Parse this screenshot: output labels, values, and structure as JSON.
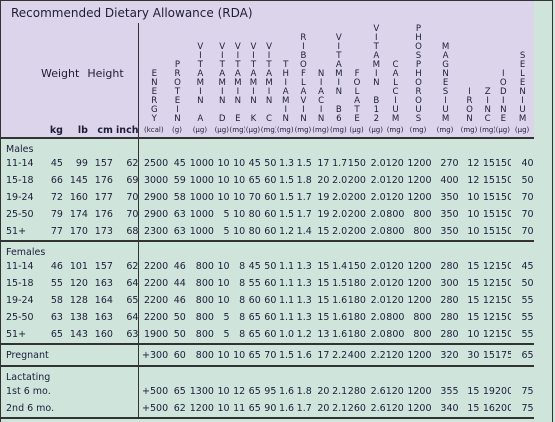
{
  "header": {
    "title": "Recommended Dietary Allowance (RDA)",
    "weight": "Weight",
    "height": "Height",
    "subcolumns": [
      "kg",
      "lb",
      "cm",
      "inch"
    ]
  },
  "columns": [
    {
      "name": "ENERGY",
      "unit": "(kcal)"
    },
    {
      "name": "PROTEIN",
      "unit": "(g)"
    },
    {
      "name": "VITAMIN A",
      "unit": "(µg)"
    },
    {
      "name": "VITAMIN D",
      "unit": "(µg)"
    },
    {
      "name": "VITAMIN E",
      "unit": "(mg)"
    },
    {
      "name": "VITAMIN K",
      "unit": "(µg)"
    },
    {
      "name": "VITAMIN C",
      "unit": "(mg)"
    },
    {
      "name": "THIAMIN",
      "unit": "(mg)"
    },
    {
      "name": "RIBOFLAVIN",
      "unit": "(mg)"
    },
    {
      "name": "NIACIN",
      "unit": "(mg)"
    },
    {
      "name": "VITAMIN B6",
      "unit": "(mg)"
    },
    {
      "name": "FOLATE",
      "unit": "(µg)"
    },
    {
      "name": "VITAMIN B12",
      "unit": "(µg)"
    },
    {
      "name": "CALCIUM",
      "unit": "(mg)"
    },
    {
      "name": "PHOSPHOROUS",
      "unit": "(mg)"
    },
    {
      "name": "MAGNESIUM",
      "unit": "(mg)"
    },
    {
      "name": "IRON",
      "unit": "(mg)"
    },
    {
      "name": "ZINC",
      "unit": "(mg)"
    },
    {
      "name": "IODINE",
      "unit": "(µg)"
    },
    {
      "name": "SELENIUM",
      "unit": "(µg)"
    }
  ],
  "groups": [
    {
      "label": "Males",
      "rows": [
        {
          "label": "11-14",
          "measures": [
            "45",
            "99",
            "157",
            "62"
          ],
          "values": [
            "2500",
            "45",
            "1000",
            "10",
            "10",
            "45",
            "50",
            "1.3",
            "1.5",
            "17",
            "1.7",
            "150",
            "2.0",
            "1200",
            "1200",
            "270",
            "12",
            "15",
            "150",
            "40"
          ]
        },
        {
          "label": "15-18",
          "measures": [
            "66",
            "145",
            "176",
            "69"
          ],
          "values": [
            "3000",
            "59",
            "1000",
            "10",
            "10",
            "65",
            "60",
            "1.5",
            "1.8",
            "20",
            "2.0",
            "200",
            "2.0",
            "1200",
            "1200",
            "400",
            "12",
            "15",
            "150",
            "50"
          ]
        },
        {
          "label": "19-24",
          "measures": [
            "72",
            "160",
            "177",
            "70"
          ],
          "values": [
            "2900",
            "58",
            "1000",
            "10",
            "10",
            "70",
            "60",
            "1.5",
            "1.7",
            "19",
            "2.0",
            "200",
            "2.0",
            "1200",
            "1200",
            "350",
            "10",
            "15",
            "150",
            "70"
          ]
        },
        {
          "label": "25-50",
          "measures": [
            "79",
            "174",
            "176",
            "70"
          ],
          "values": [
            "2900",
            "63",
            "1000",
            "5",
            "10",
            "80",
            "60",
            "1.5",
            "1.7",
            "19",
            "2.0",
            "200",
            "2.0",
            "800",
            "800",
            "350",
            "10",
            "15",
            "150",
            "70"
          ]
        },
        {
          "label": "51+",
          "measures": [
            "77",
            "170",
            "173",
            "68"
          ],
          "values": [
            "2300",
            "63",
            "1000",
            "5",
            "10",
            "80",
            "60",
            "1.2",
            "1.4",
            "15",
            "2.0",
            "200",
            "2.0",
            "800",
            "800",
            "350",
            "10",
            "15",
            "150",
            "70"
          ]
        }
      ]
    },
    {
      "label": "Females",
      "rows": [
        {
          "label": "11-14",
          "measures": [
            "46",
            "101",
            "157",
            "62"
          ],
          "values": [
            "2200",
            "46",
            "800",
            "10",
            "8",
            "45",
            "50",
            "1.1",
            "1.3",
            "15",
            "1.4",
            "150",
            "2.0",
            "1200",
            "1200",
            "280",
            "15",
            "12",
            "150",
            "45"
          ]
        },
        {
          "label": "15-18",
          "measures": [
            "55",
            "120",
            "163",
            "64"
          ],
          "values": [
            "2200",
            "44",
            "800",
            "10",
            "8",
            "55",
            "60",
            "1.1",
            "1.3",
            "15",
            "1.5",
            "180",
            "2.0",
            "1200",
            "1200",
            "300",
            "15",
            "12",
            "150",
            "50"
          ]
        },
        {
          "label": "19-24",
          "measures": [
            "58",
            "128",
            "164",
            "65"
          ],
          "values": [
            "2200",
            "46",
            "800",
            "10",
            "8",
            "60",
            "60",
            "1.1",
            "1.3",
            "15",
            "1.6",
            "180",
            "2.0",
            "1200",
            "1200",
            "280",
            "15",
            "12",
            "150",
            "55"
          ]
        },
        {
          "label": "25-50",
          "measures": [
            "63",
            "138",
            "163",
            "64"
          ],
          "values": [
            "2200",
            "50",
            "800",
            "5",
            "8",
            "65",
            "60",
            "1.1",
            "1.3",
            "15",
            "1.6",
            "180",
            "2.0",
            "800",
            "800",
            "280",
            "15",
            "12",
            "150",
            "55"
          ]
        },
        {
          "label": "51+",
          "measures": [
            "65",
            "143",
            "160",
            "63"
          ],
          "values": [
            "1900",
            "50",
            "800",
            "5",
            "8",
            "65",
            "60",
            "1.0",
            "1.2",
            "13",
            "1.6",
            "180",
            "2.0",
            "800",
            "800",
            "280",
            "10",
            "12",
            "150",
            "55"
          ]
        }
      ]
    },
    {
      "label": "Pregnant",
      "values": [
        "+300",
        "60",
        "800",
        "10",
        "10",
        "65",
        "70",
        "1.5",
        "1.6",
        "17",
        "2.2",
        "400",
        "2.2",
        "1200",
        "1200",
        "320",
        "30",
        "15",
        "175",
        "65"
      ]
    },
    {
      "label": "Lactating",
      "rows": [
        {
          "label": "1st 6 mo.",
          "values": [
            "+500",
            "65",
            "1300",
            "10",
            "12",
            "65",
            "95",
            "1.6",
            "1.8",
            "20",
            "2.1",
            "280",
            "2.6",
            "1200",
            "1200",
            "355",
            "15",
            "19",
            "200",
            "75"
          ]
        },
        {
          "label": "2nd 6 mo.",
          "values": [
            "+500",
            "62",
            "1200",
            "10",
            "11",
            "65",
            "90",
            "1.6",
            "1.7",
            "20",
            "2.1",
            "260",
            "2.6",
            "1200",
            "1200",
            "340",
            "15",
            "16",
            "200",
            "75"
          ]
        }
      ]
    }
  ]
}
